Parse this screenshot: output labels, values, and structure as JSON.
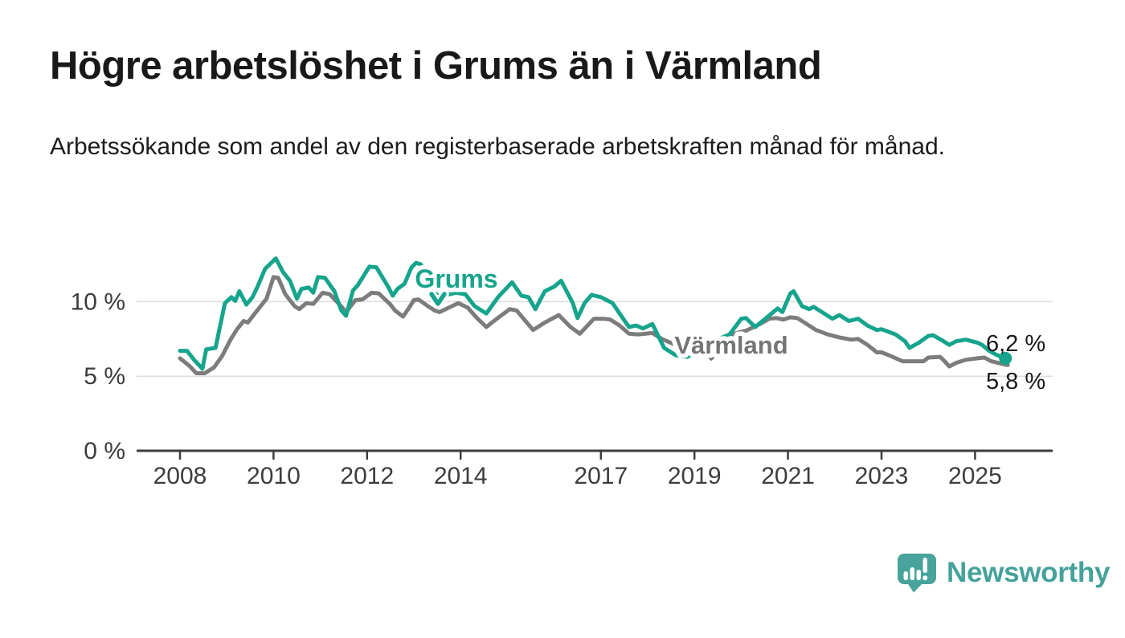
{
  "header": {
    "title": "Högre arbetslöshet i Grums än i Värmland",
    "subtitle": "Arbetssökande som andel av den registerbaserade arbetskraften månad för månad."
  },
  "footer": {
    "brand": "Newsworthy",
    "brand_color": "#45a29b"
  },
  "chart_data": {
    "type": "line",
    "title": "",
    "xlabel": "",
    "ylabel": "",
    "x_unit": "decimal_year",
    "y_unit": "percent",
    "grid": "horizontal",
    "legend": "inline-labels",
    "x_axis": {
      "ticks": [
        2008,
        2010,
        2012,
        2014,
        2017,
        2019,
        2021,
        2023,
        2025
      ],
      "tick_labels": [
        "2008",
        "2010",
        "2012",
        "2014",
        "2017",
        "2019",
        "2021",
        "2023",
        "2025"
      ],
      "range": [
        2007.1,
        2026.6
      ]
    },
    "y_axis": {
      "ticks": [
        0,
        5,
        10
      ],
      "tick_labels": [
        "0 %",
        "5 %",
        "10 %"
      ],
      "range": [
        0,
        13.6
      ]
    },
    "axis_color": "#3d3d3d",
    "gridline_color": "#dcdcdc",
    "value_label_color": "#191919",
    "series": [
      {
        "name": "Grums",
        "color": "#16a48c",
        "label_color": "#16a48c",
        "end_label": "6,2 %",
        "end_value": 6.2,
        "points": [
          [
            2008.0,
            6.7
          ],
          [
            2008.15,
            6.7
          ],
          [
            2008.3,
            6.1
          ],
          [
            2008.48,
            5.5
          ],
          [
            2008.56,
            6.8
          ],
          [
            2008.76,
            6.9
          ],
          [
            2008.96,
            9.9
          ],
          [
            2009.1,
            10.3
          ],
          [
            2009.18,
            10.05
          ],
          [
            2009.27,
            10.7
          ],
          [
            2009.42,
            9.8
          ],
          [
            2009.55,
            10.3
          ],
          [
            2009.65,
            10.95
          ],
          [
            2009.82,
            12.2
          ],
          [
            2010.05,
            12.9
          ],
          [
            2010.2,
            12.0
          ],
          [
            2010.35,
            11.4
          ],
          [
            2010.5,
            10.2
          ],
          [
            2010.6,
            10.85
          ],
          [
            2010.75,
            10.95
          ],
          [
            2010.85,
            10.6
          ],
          [
            2010.95,
            11.65
          ],
          [
            2011.1,
            11.6
          ],
          [
            2011.3,
            10.7
          ],
          [
            2011.45,
            9.4
          ],
          [
            2011.55,
            9.05
          ],
          [
            2011.7,
            10.75
          ],
          [
            2011.8,
            11.1
          ],
          [
            2012.05,
            12.35
          ],
          [
            2012.2,
            12.3
          ],
          [
            2012.45,
            11.0
          ],
          [
            2012.55,
            10.4
          ],
          [
            2012.65,
            10.85
          ],
          [
            2012.8,
            11.2
          ],
          [
            2012.95,
            12.3
          ],
          [
            2013.05,
            12.6
          ],
          [
            2013.15,
            12.5
          ],
          [
            2013.35,
            11.3
          ],
          [
            2013.55,
            10.1
          ],
          [
            2013.7,
            10.45
          ],
          [
            2013.9,
            10.6
          ],
          [
            2014.1,
            10.5
          ],
          [
            2014.3,
            9.7
          ],
          [
            2014.55,
            9.2
          ],
          [
            2014.8,
            10.3
          ],
          [
            2015.1,
            11.3
          ],
          [
            2015.3,
            10.4
          ],
          [
            2015.45,
            10.3
          ],
          [
            2015.6,
            9.5
          ],
          [
            2015.8,
            10.7
          ],
          [
            2016.0,
            11.0
          ],
          [
            2016.15,
            11.4
          ],
          [
            2016.4,
            9.9
          ],
          [
            2016.5,
            8.9
          ],
          [
            2016.65,
            9.9
          ],
          [
            2016.8,
            10.45
          ],
          [
            2017.0,
            10.3
          ],
          [
            2017.25,
            9.9
          ],
          [
            2017.4,
            9.2
          ],
          [
            2017.6,
            8.3
          ],
          [
            2017.75,
            8.4
          ],
          [
            2017.9,
            8.2
          ],
          [
            2018.1,
            8.5
          ],
          [
            2018.35,
            6.9
          ],
          [
            2018.6,
            6.4
          ],
          [
            2018.85,
            6.3
          ],
          [
            2019.2,
            6.9
          ],
          [
            2019.6,
            7.6
          ],
          [
            2019.75,
            7.8
          ],
          [
            2020.0,
            8.85
          ],
          [
            2020.1,
            8.9
          ],
          [
            2020.3,
            8.3
          ],
          [
            2020.65,
            9.2
          ],
          [
            2020.78,
            9.55
          ],
          [
            2020.88,
            9.3
          ],
          [
            2021.05,
            10.55
          ],
          [
            2021.12,
            10.7
          ],
          [
            2021.3,
            9.7
          ],
          [
            2021.45,
            9.5
          ],
          [
            2021.55,
            9.65
          ],
          [
            2021.95,
            8.85
          ],
          [
            2022.1,
            9.1
          ],
          [
            2022.3,
            8.7
          ],
          [
            2022.5,
            8.85
          ],
          [
            2022.7,
            8.4
          ],
          [
            2022.9,
            8.1
          ],
          [
            2023.0,
            8.15
          ],
          [
            2023.3,
            7.8
          ],
          [
            2023.5,
            7.35
          ],
          [
            2023.6,
            6.9
          ],
          [
            2023.8,
            7.25
          ],
          [
            2024.0,
            7.7
          ],
          [
            2024.1,
            7.75
          ],
          [
            2024.3,
            7.4
          ],
          [
            2024.45,
            7.1
          ],
          [
            2024.6,
            7.35
          ],
          [
            2024.8,
            7.45
          ],
          [
            2025.05,
            7.25
          ],
          [
            2025.15,
            7.1
          ],
          [
            2025.3,
            6.7
          ],
          [
            2025.45,
            6.45
          ],
          [
            2025.65,
            6.2
          ]
        ]
      },
      {
        "name": "Värmland",
        "color": "#7c7c7c",
        "label_color": "#757575",
        "end_label": "5,8 %",
        "end_value": 5.8,
        "points": [
          [
            2008.0,
            6.2
          ],
          [
            2008.2,
            5.7
          ],
          [
            2008.35,
            5.2
          ],
          [
            2008.53,
            5.2
          ],
          [
            2008.73,
            5.6
          ],
          [
            2008.9,
            6.35
          ],
          [
            2009.08,
            7.45
          ],
          [
            2009.22,
            8.15
          ],
          [
            2009.36,
            8.7
          ],
          [
            2009.45,
            8.6
          ],
          [
            2009.6,
            9.2
          ],
          [
            2009.85,
            10.2
          ],
          [
            2010.0,
            11.65
          ],
          [
            2010.1,
            11.6
          ],
          [
            2010.25,
            10.5
          ],
          [
            2010.45,
            9.7
          ],
          [
            2010.55,
            9.5
          ],
          [
            2010.7,
            9.9
          ],
          [
            2010.85,
            9.85
          ],
          [
            2011.05,
            10.6
          ],
          [
            2011.2,
            10.5
          ],
          [
            2011.4,
            9.85
          ],
          [
            2011.55,
            9.3
          ],
          [
            2011.75,
            10.1
          ],
          [
            2011.9,
            10.15
          ],
          [
            2012.1,
            10.6
          ],
          [
            2012.25,
            10.55
          ],
          [
            2012.5,
            9.8
          ],
          [
            2012.6,
            9.4
          ],
          [
            2012.77,
            9.0
          ],
          [
            2012.9,
            9.6
          ],
          [
            2013.0,
            10.1
          ],
          [
            2013.1,
            10.15
          ],
          [
            2013.3,
            9.7
          ],
          [
            2013.45,
            9.4
          ],
          [
            2013.55,
            9.3
          ],
          [
            2013.75,
            9.6
          ],
          [
            2013.95,
            9.9
          ],
          [
            2014.15,
            9.6
          ],
          [
            2014.35,
            8.9
          ],
          [
            2014.55,
            8.3
          ],
          [
            2014.75,
            8.8
          ],
          [
            2015.05,
            9.5
          ],
          [
            2015.2,
            9.4
          ],
          [
            2015.55,
            8.1
          ],
          [
            2015.8,
            8.6
          ],
          [
            2016.1,
            9.1
          ],
          [
            2016.35,
            8.3
          ],
          [
            2016.55,
            7.85
          ],
          [
            2016.85,
            8.85
          ],
          [
            2017.05,
            8.85
          ],
          [
            2017.2,
            8.8
          ],
          [
            2017.4,
            8.4
          ],
          [
            2017.6,
            7.85
          ],
          [
            2017.8,
            7.8
          ],
          [
            2018.1,
            7.9
          ],
          [
            2018.3,
            7.5
          ],
          [
            2018.6,
            7.1
          ],
          [
            2019.0,
            6.9
          ],
          [
            2019.5,
            7.3
          ],
          [
            2019.9,
            7.9
          ],
          [
            2020.1,
            8.05
          ],
          [
            2020.4,
            8.5
          ],
          [
            2020.6,
            8.85
          ],
          [
            2020.75,
            8.9
          ],
          [
            2020.9,
            8.8
          ],
          [
            2021.05,
            8.95
          ],
          [
            2021.2,
            8.9
          ],
          [
            2021.6,
            8.1
          ],
          [
            2021.85,
            7.8
          ],
          [
            2022.1,
            7.6
          ],
          [
            2022.35,
            7.45
          ],
          [
            2022.5,
            7.5
          ],
          [
            2022.7,
            7.1
          ],
          [
            2022.9,
            6.6
          ],
          [
            2023.0,
            6.6
          ],
          [
            2023.2,
            6.35
          ],
          [
            2023.45,
            6.0
          ],
          [
            2023.9,
            6.0
          ],
          [
            2024.0,
            6.25
          ],
          [
            2024.25,
            6.3
          ],
          [
            2024.35,
            6.0
          ],
          [
            2024.45,
            5.65
          ],
          [
            2024.6,
            5.9
          ],
          [
            2024.8,
            6.1
          ],
          [
            2025.05,
            6.2
          ],
          [
            2025.2,
            6.25
          ],
          [
            2025.35,
            6.0
          ],
          [
            2025.55,
            5.85
          ],
          [
            2025.7,
            5.75
          ]
        ]
      }
    ]
  }
}
